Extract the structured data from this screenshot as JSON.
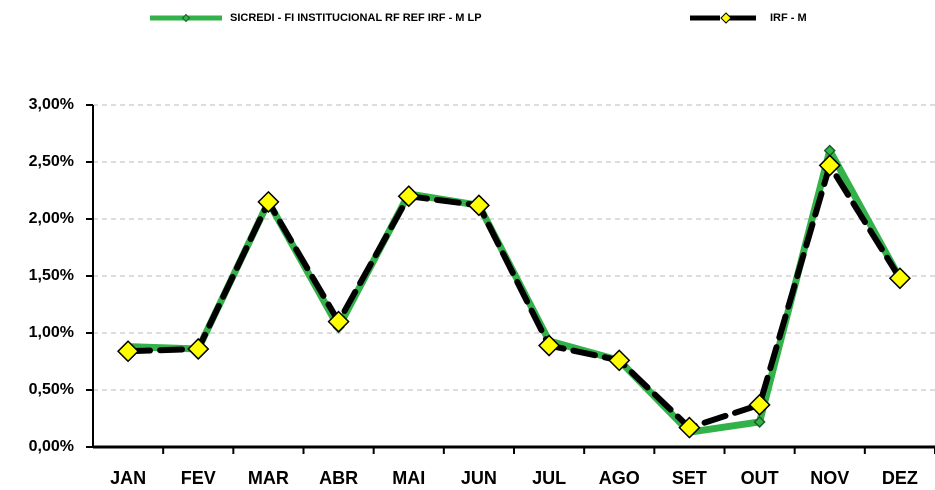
{
  "chart_data": {
    "type": "line",
    "categories": [
      "JAN",
      "FEV",
      "MAR",
      "ABR",
      "MAI",
      "JUN",
      "JUL",
      "AGO",
      "SET",
      "OUT",
      "NOV",
      "DEZ"
    ],
    "series": [
      {
        "name": "SICREDI - FI INSTITUCIONAL RF REF IRF - M LP",
        "color": "#33b24a",
        "values": [
          0.88,
          0.86,
          2.15,
          1.05,
          2.22,
          2.12,
          0.93,
          0.76,
          0.13,
          0.22,
          2.6,
          1.48
        ]
      },
      {
        "name": "IRF - M",
        "color": "#000000",
        "values": [
          0.84,
          0.86,
          2.15,
          1.1,
          2.2,
          2.12,
          0.89,
          0.76,
          0.17,
          0.37,
          2.47,
          1.48
        ]
      }
    ],
    "ylim": [
      0,
      3
    ],
    "yticks": [
      {
        "value": 0,
        "label": "0,00%"
      },
      {
        "value": 0.5,
        "label": "0,50%"
      },
      {
        "value": 1,
        "label": "1,00%"
      },
      {
        "value": 1.5,
        "label": "1,50%"
      },
      {
        "value": 2,
        "label": "2,00%"
      },
      {
        "value": 2.5,
        "label": "2,50%"
      },
      {
        "value": 3,
        "label": "3,00%"
      }
    ],
    "grid": true
  }
}
